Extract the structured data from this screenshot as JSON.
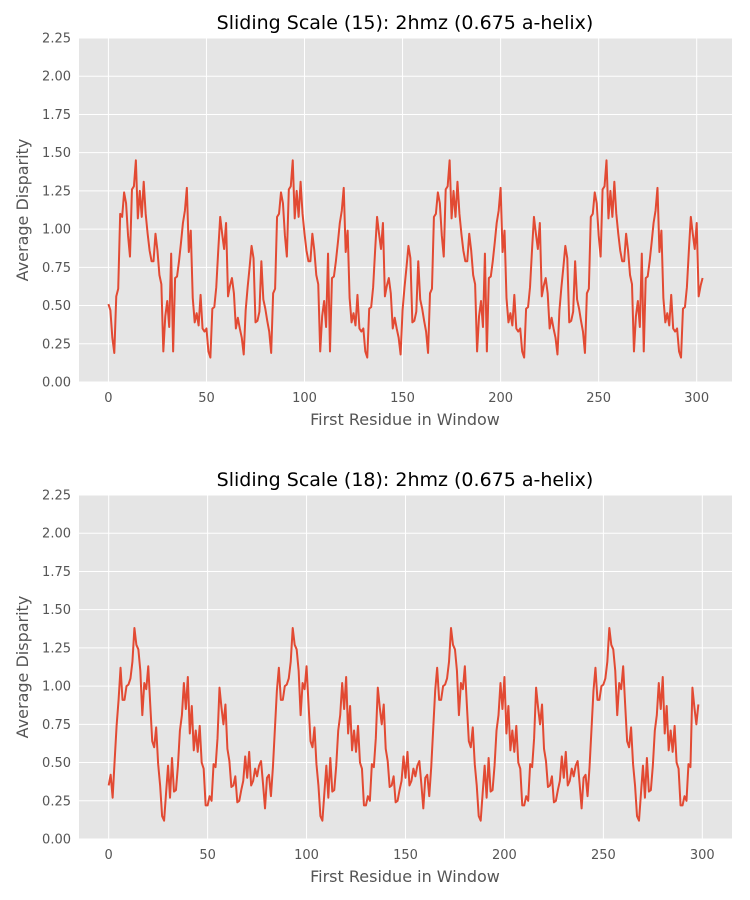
{
  "chart_data": [
    {
      "type": "line",
      "title": "Sliding Scale (15): 2hmz (0.675 a-helix)",
      "xlabel": "First Residue in Window",
      "ylabel": "Average Disparity",
      "xlim": [
        -15,
        318
      ],
      "ylim": [
        0,
        2.25
      ],
      "xticks": [
        0,
        50,
        100,
        150,
        200,
        250,
        300
      ],
      "yticks": [
        0.0,
        0.25,
        0.5,
        0.75,
        1.0,
        1.25,
        1.5,
        1.75,
        2.0,
        2.25
      ],
      "grid": true,
      "line_color": "#E24A33",
      "background_color": "#E5E5E5",
      "series": [
        {
          "x_start": 0,
          "values": [
            0.51,
            0.47,
            0.29,
            0.19,
            0.56,
            0.61,
            1.1,
            1.08,
            1.24,
            1.17,
            0.96,
            0.82,
            1.26,
            1.28,
            1.45,
            1.07,
            1.25,
            1.08,
            1.31,
            1.1,
            0.97,
            0.86,
            0.79,
            0.79,
            0.97,
            0.86,
            0.7,
            0.64,
            0.2,
            0.43,
            0.53,
            0.36,
            0.84,
            0.2,
            0.68,
            0.69,
            0.79,
            0.91,
            1.04,
            1.12,
            1.27,
            0.85,
            0.99,
            0.55,
            0.39,
            0.45,
            0.37,
            0.57,
            0.35,
            0.33,
            0.35,
            0.2,
            0.16,
            0.48,
            0.49,
            0.62,
            0.86,
            1.08,
            0.97,
            0.87,
            1.04,
            0.56,
            0.63,
            0.68,
            0.58,
            0.35,
            0.42,
            0.35,
            0.29,
            0.18,
            0.47,
            0.62,
            0.75,
            0.89,
            0.81,
            0.39,
            0.4,
            0.46,
            0.79,
            0.54,
            0.48,
            0.4,
            0.33,
            0.19,
            0.58,
            0.61,
            1.08,
            1.1,
            1.24,
            1.17,
            0.96,
            0.82,
            1.26,
            1.28,
            1.45,
            1.07,
            1.25,
            1.08,
            1.31,
            1.1,
            0.97,
            0.86,
            0.79,
            0.79,
            0.97,
            0.86,
            0.7,
            0.64,
            0.2,
            0.43,
            0.53,
            0.36,
            0.84,
            0.2,
            0.68,
            0.69,
            0.79,
            0.91,
            1.04,
            1.12,
            1.27,
            0.85,
            0.99,
            0.55,
            0.39,
            0.45,
            0.37,
            0.57,
            0.35,
            0.33,
            0.35,
            0.2,
            0.16,
            0.48,
            0.49,
            0.62,
            0.86,
            1.08,
            0.97,
            0.87,
            1.04,
            0.56,
            0.63,
            0.68,
            0.58,
            0.35,
            0.42,
            0.35,
            0.29,
            0.18,
            0.47,
            0.62,
            0.75,
            0.89,
            0.81,
            0.39,
            0.4,
            0.46,
            0.79,
            0.54,
            0.48,
            0.4,
            0.33,
            0.19,
            0.58,
            0.61,
            1.08,
            1.1,
            1.24,
            1.17,
            0.96,
            0.82,
            1.26,
            1.28,
            1.45,
            1.07,
            1.25,
            1.08,
            1.31,
            1.1,
            0.97,
            0.86,
            0.79,
            0.79,
            0.97,
            0.86,
            0.7,
            0.64,
            0.2,
            0.43,
            0.53,
            0.36,
            0.84,
            0.2,
            0.68,
            0.69,
            0.79,
            0.91,
            1.04,
            1.12,
            1.27,
            0.85,
            0.99,
            0.55,
            0.39,
            0.45,
            0.37,
            0.57,
            0.35,
            0.33,
            0.35,
            0.2,
            0.16,
            0.48,
            0.49,
            0.62,
            0.86,
            1.08,
            0.97,
            0.87,
            1.04,
            0.56,
            0.63,
            0.68,
            0.58,
            0.35,
            0.42,
            0.35,
            0.29,
            0.18,
            0.47,
            0.62,
            0.75,
            0.89,
            0.81,
            0.39,
            0.4,
            0.46,
            0.79,
            0.54,
            0.48,
            0.4,
            0.33,
            0.19,
            0.58,
            0.61,
            1.08,
            1.1,
            1.24,
            1.17,
            0.96,
            0.82,
            1.26,
            1.28,
            1.45,
            1.07,
            1.25,
            1.08,
            1.31,
            1.1,
            0.97,
            0.86,
            0.79,
            0.79,
            0.97,
            0.86,
            0.7,
            0.64,
            0.2,
            0.43,
            0.53,
            0.36,
            0.84,
            0.2,
            0.68,
            0.69,
            0.79,
            0.91,
            1.04,
            1.12,
            1.27,
            0.85,
            0.99,
            0.55,
            0.39,
            0.45,
            0.37,
            0.57,
            0.35,
            0.33,
            0.35,
            0.2,
            0.16,
            0.48,
            0.49,
            0.62,
            0.86,
            1.08,
            0.97,
            0.87,
            1.04,
            0.56,
            0.63,
            0.68
          ]
        }
      ]
    },
    {
      "type": "line",
      "title": "Sliding Scale (18): 2hmz (0.675 a-helix)",
      "xlabel": "First Residue in Window",
      "ylabel": "Average Disparity",
      "xlim": [
        -15,
        315
      ],
      "ylim": [
        0,
        2.25
      ],
      "xticks": [
        0,
        50,
        100,
        150,
        200,
        250,
        300
      ],
      "yticks": [
        0.0,
        0.25,
        0.5,
        0.75,
        1.0,
        1.25,
        1.5,
        1.75,
        2.0,
        2.25
      ],
      "grid": true,
      "line_color": "#E24A33",
      "background_color": "#E5E5E5",
      "series": [
        {
          "x_start": 0,
          "values": [
            0.35,
            0.42,
            0.27,
            0.51,
            0.74,
            0.91,
            1.12,
            0.91,
            0.91,
            1.0,
            1.01,
            1.05,
            1.16,
            1.38,
            1.27,
            1.24,
            1.1,
            0.81,
            1.02,
            0.98,
            1.13,
            0.88,
            0.64,
            0.6,
            0.73,
            0.49,
            0.35,
            0.15,
            0.12,
            0.3,
            0.48,
            0.27,
            0.53,
            0.31,
            0.32,
            0.48,
            0.71,
            0.81,
            1.02,
            0.85,
            1.06,
            0.69,
            0.87,
            0.58,
            0.71,
            0.57,
            0.74,
            0.5,
            0.46,
            0.22,
            0.22,
            0.28,
            0.25,
            0.49,
            0.47,
            0.66,
            0.99,
            0.86,
            0.75,
            0.88,
            0.59,
            0.51,
            0.34,
            0.35,
            0.41,
            0.24,
            0.25,
            0.32,
            0.38,
            0.54,
            0.4,
            0.57,
            0.35,
            0.38,
            0.46,
            0.41,
            0.48,
            0.51,
            0.36,
            0.2,
            0.4,
            0.42,
            0.28,
            0.47,
            0.72,
            0.97,
            1.12,
            0.91,
            0.91,
            1.0,
            1.01,
            1.05,
            1.16,
            1.38,
            1.27,
            1.24,
            1.1,
            0.81,
            1.02,
            0.98,
            1.13,
            0.88,
            0.64,
            0.6,
            0.73,
            0.49,
            0.35,
            0.15,
            0.12,
            0.3,
            0.48,
            0.27,
            0.53,
            0.31,
            0.32,
            0.48,
            0.71,
            0.81,
            1.02,
            0.85,
            1.06,
            0.69,
            0.87,
            0.58,
            0.71,
            0.57,
            0.74,
            0.5,
            0.46,
            0.22,
            0.22,
            0.28,
            0.25,
            0.49,
            0.47,
            0.66,
            0.99,
            0.86,
            0.75,
            0.88,
            0.59,
            0.51,
            0.34,
            0.35,
            0.41,
            0.24,
            0.25,
            0.32,
            0.38,
            0.54,
            0.4,
            0.57,
            0.35,
            0.38,
            0.46,
            0.41,
            0.48,
            0.51,
            0.36,
            0.2,
            0.4,
            0.42,
            0.28,
            0.47,
            0.72,
            0.97,
            1.12,
            0.91,
            0.91,
            1.0,
            1.01,
            1.05,
            1.16,
            1.38,
            1.27,
            1.24,
            1.1,
            0.81,
            1.02,
            0.98,
            1.13,
            0.88,
            0.64,
            0.6,
            0.73,
            0.49,
            0.35,
            0.15,
            0.12,
            0.3,
            0.48,
            0.27,
            0.53,
            0.31,
            0.32,
            0.48,
            0.71,
            0.81,
            1.02,
            0.85,
            1.06,
            0.69,
            0.87,
            0.58,
            0.71,
            0.57,
            0.74,
            0.5,
            0.46,
            0.22,
            0.22,
            0.28,
            0.25,
            0.49,
            0.47,
            0.66,
            0.99,
            0.86,
            0.75,
            0.88,
            0.59,
            0.51,
            0.34,
            0.35,
            0.41,
            0.24,
            0.25,
            0.32,
            0.38,
            0.54,
            0.4,
            0.57,
            0.35,
            0.38,
            0.46,
            0.41,
            0.48,
            0.51,
            0.36,
            0.2,
            0.4,
            0.42,
            0.28,
            0.47,
            0.72,
            0.97,
            1.12,
            0.91,
            0.91,
            1.0,
            1.01,
            1.05,
            1.16,
            1.38,
            1.27,
            1.24,
            1.1,
            0.81,
            1.02,
            0.98,
            1.13,
            0.88,
            0.64,
            0.6,
            0.73,
            0.49,
            0.35,
            0.15,
            0.12,
            0.3,
            0.48,
            0.27,
            0.53,
            0.31,
            0.32,
            0.48,
            0.71,
            0.81,
            1.02,
            0.85,
            1.06,
            0.69,
            0.87,
            0.58,
            0.71,
            0.57,
            0.74,
            0.5,
            0.46,
            0.22,
            0.22,
            0.28,
            0.25,
            0.49,
            0.47,
            0.99,
            0.86,
            0.75,
            0.88
          ]
        }
      ]
    }
  ]
}
